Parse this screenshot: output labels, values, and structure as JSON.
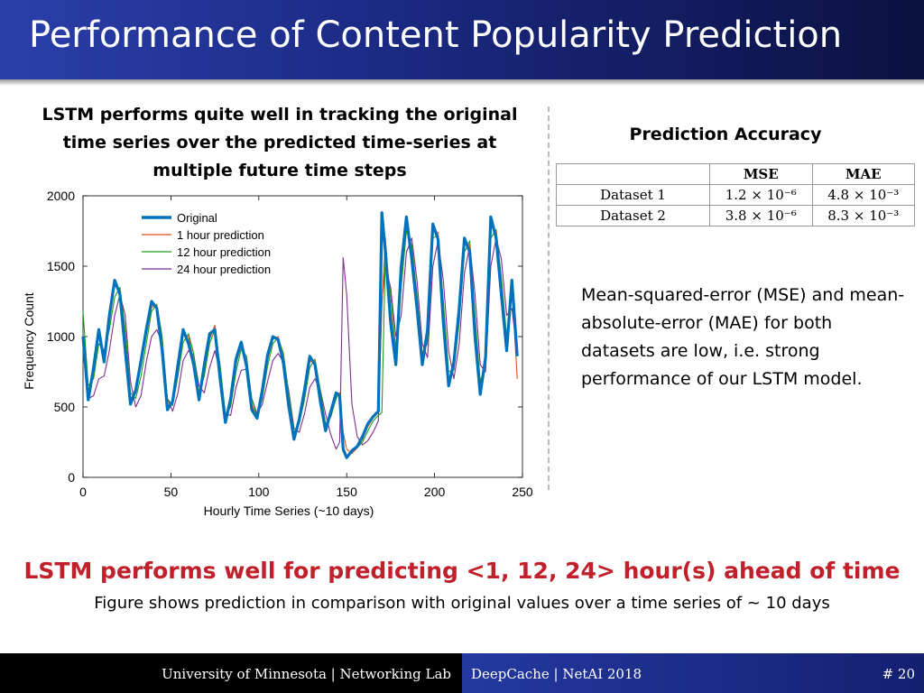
{
  "slide": {
    "title": "Performance of Content Popularity Prediction",
    "chart_caption": "LSTM performs quite well in tracking the original time series over the predicted time-series at multiple future time steps",
    "headline": "LSTM performs well for predicting <1, 12, 24> hour(s) ahead of time",
    "subline": "Figure shows prediction in comparison with original values over a time series of ~ 10 days"
  },
  "accuracy": {
    "title": "Prediction Accuracy",
    "headers": [
      "MSE",
      "MAE"
    ],
    "rows": [
      {
        "label": "Dataset 1",
        "mse": "1.2 × 10⁻⁶",
        "mae": "4.8 × 10⁻³"
      },
      {
        "label": "Dataset 2",
        "mse": "3.8 × 10⁻⁶",
        "mae": "8.3 × 10⁻³"
      }
    ],
    "description": "Mean-squared-error (MSE) and mean-absolute-error (MAE) for both datasets are low, i.e. strong performance of our LSTM model."
  },
  "footer": {
    "affiliation": "University of Minnesota | Networking Lab",
    "conference": "DeepCache | NetAI 2018",
    "slide_number": "# 20"
  },
  "colors": {
    "original": "#0072bd",
    "h1": "#d95319",
    "h12": "#1a9e1a",
    "h24": "#7e2f8e",
    "headline": "#c0202a"
  },
  "chart_data": {
    "type": "line",
    "title": "",
    "xlabel": "Hourly Time Series (~10 days)",
    "ylabel": "Frequency Count",
    "xlim": [
      0,
      250
    ],
    "ylim": [
      0,
      2000
    ],
    "xticks": [
      0,
      50,
      100,
      150,
      200,
      250
    ],
    "yticks": [
      0,
      500,
      1000,
      1500,
      2000
    ],
    "legend_position": "top-left",
    "series": [
      {
        "name": "Original",
        "color_key": "original",
        "x": [
          0,
          3,
          6,
          9,
          12,
          15,
          18,
          21,
          24,
          27,
          30,
          33,
          36,
          39,
          42,
          45,
          48,
          51,
          54,
          57,
          60,
          63,
          66,
          69,
          72,
          75,
          78,
          81,
          84,
          87,
          90,
          93,
          96,
          99,
          102,
          105,
          108,
          111,
          114,
          117,
          120,
          123,
          126,
          129,
          132,
          135,
          138,
          141,
          144,
          146,
          148,
          150,
          153,
          156,
          159,
          162,
          165,
          168,
          170,
          172,
          175,
          178,
          181,
          184,
          187,
          190,
          193,
          196,
          199,
          202,
          205,
          208,
          211,
          214,
          217,
          220,
          223,
          226,
          229,
          232,
          235,
          238,
          241,
          244,
          247
        ],
        "values": [
          1000,
          550,
          780,
          1050,
          820,
          1150,
          1400,
          1300,
          900,
          520,
          620,
          830,
          1050,
          1250,
          1200,
          900,
          480,
          540,
          800,
          1050,
          950,
          800,
          550,
          800,
          1020,
          1050,
          700,
          390,
          560,
          840,
          960,
          790,
          480,
          420,
          620,
          870,
          1000,
          980,
          810,
          510,
          270,
          410,
          620,
          860,
          800,
          540,
          330,
          470,
          600,
          580,
          200,
          140,
          190,
          220,
          290,
          380,
          430,
          470,
          1880,
          1600,
          1100,
          800,
          1500,
          1850,
          1550,
          1200,
          800,
          1050,
          1800,
          1690,
          1100,
          650,
          820,
          1200,
          1700,
          1600,
          1000,
          590,
          850,
          1850,
          1700,
          1300,
          900,
          1400,
          860
        ]
      },
      {
        "name": "1 hour prediction",
        "color_key": "h1",
        "x": [
          0,
          3,
          6,
          9,
          12,
          15,
          18,
          21,
          24,
          27,
          30,
          33,
          36,
          39,
          42,
          45,
          48,
          51,
          54,
          57,
          60,
          63,
          66,
          69,
          72,
          75,
          78,
          81,
          84,
          87,
          90,
          93,
          96,
          99,
          102,
          105,
          108,
          111,
          114,
          117,
          120,
          123,
          126,
          129,
          132,
          135,
          138,
          141,
          144,
          146,
          148,
          150,
          153,
          156,
          159,
          162,
          165,
          168,
          170,
          172,
          175,
          178,
          181,
          184,
          187,
          190,
          193,
          196,
          199,
          202,
          205,
          208,
          211,
          214,
          217,
          220,
          223,
          226,
          229,
          232,
          235,
          238,
          241,
          244,
          247
        ],
        "values": [
          950,
          580,
          740,
          1020,
          850,
          1100,
          1360,
          1330,
          950,
          560,
          600,
          790,
          1010,
          1210,
          1220,
          950,
          520,
          520,
          760,
          1010,
          1000,
          830,
          580,
          760,
          980,
          1080,
          750,
          420,
          530,
          800,
          940,
          830,
          520,
          420,
          590,
          830,
          980,
          1000,
          850,
          550,
          290,
          390,
          580,
          820,
          830,
          580,
          350,
          450,
          590,
          600,
          320,
          200,
          170,
          210,
          270,
          360,
          420,
          460,
          1200,
          1700,
          1200,
          830,
          1420,
          1800,
          1600,
          1250,
          830,
          1000,
          1750,
          1740,
          1170,
          690,
          790,
          1150,
          1650,
          1650,
          1060,
          620,
          820,
          1780,
          1750,
          1350,
          950,
          1350,
          700
        ]
      },
      {
        "name": "12 hour prediction",
        "color_key": "h12",
        "x": [
          0,
          3,
          6,
          9,
          12,
          15,
          18,
          21,
          24,
          27,
          30,
          33,
          36,
          39,
          42,
          45,
          48,
          51,
          54,
          57,
          60,
          63,
          66,
          69,
          72,
          75,
          78,
          81,
          84,
          87,
          90,
          93,
          96,
          99,
          102,
          105,
          108,
          111,
          114,
          117,
          120,
          123,
          126,
          129,
          132,
          135,
          138,
          141,
          144,
          146,
          148,
          150,
          153,
          156,
          159,
          162,
          165,
          168,
          170,
          172,
          175,
          178,
          181,
          184,
          187,
          190,
          193,
          196,
          199,
          202,
          205,
          208,
          211,
          214,
          217,
          220,
          223,
          226,
          229,
          232,
          235,
          238,
          241,
          244,
          247
        ],
        "values": [
          1180,
          650,
          700,
          950,
          900,
          1050,
          1280,
          1350,
          1050,
          600,
          560,
          720,
          950,
          1180,
          1230,
          1000,
          560,
          510,
          720,
          960,
          1020,
          880,
          600,
          720,
          950,
          1050,
          800,
          450,
          500,
          750,
          910,
          860,
          560,
          430,
          560,
          790,
          950,
          990,
          880,
          600,
          320,
          380,
          550,
          780,
          840,
          620,
          380,
          430,
          560,
          600,
          180,
          150,
          180,
          210,
          250,
          330,
          400,
          440,
          460,
          1600,
          1300,
          900,
          1350,
          1750,
          1650,
          1300,
          880,
          950,
          1700,
          1720,
          1250,
          750,
          760,
          1100,
          1600,
          1680,
          1150,
          680,
          800,
          1700,
          1760,
          1420,
          1000,
          1300,
          900
        ]
      },
      {
        "name": "24 hour prediction",
        "color_key": "h24",
        "x": [
          0,
          3,
          6,
          9,
          12,
          15,
          18,
          21,
          24,
          27,
          30,
          33,
          36,
          39,
          42,
          45,
          48,
          51,
          54,
          57,
          60,
          63,
          66,
          69,
          72,
          75,
          78,
          81,
          84,
          87,
          90,
          93,
          96,
          99,
          102,
          105,
          108,
          111,
          114,
          117,
          120,
          123,
          126,
          129,
          132,
          135,
          138,
          141,
          144,
          146,
          148,
          150,
          153,
          156,
          159,
          162,
          165,
          168,
          170,
          172,
          175,
          178,
          181,
          184,
          187,
          190,
          193,
          196,
          199,
          202,
          205,
          208,
          211,
          214,
          217,
          220,
          223,
          226,
          229,
          232,
          235,
          238,
          241,
          244,
          247
        ],
        "values": [
          900,
          560,
          580,
          700,
          720,
          900,
          1150,
          1300,
          1150,
          680,
          500,
          580,
          820,
          1000,
          1050,
          950,
          560,
          470,
          600,
          830,
          900,
          870,
          650,
          600,
          780,
          900,
          750,
          450,
          440,
          640,
          760,
          770,
          560,
          450,
          520,
          680,
          830,
          880,
          820,
          620,
          350,
          320,
          450,
          640,
          700,
          620,
          450,
          300,
          200,
          250,
          1560,
          1300,
          520,
          290,
          230,
          260,
          320,
          400,
          1250,
          1500,
          1350,
          1000,
          1150,
          1600,
          1700,
          1400,
          950,
          850,
          1500,
          1680,
          1400,
          900,
          700,
          950,
          1450,
          1650,
          1300,
          800,
          750,
          1500,
          1700,
          1550,
          1150,
          1200,
          880
        ]
      }
    ]
  }
}
